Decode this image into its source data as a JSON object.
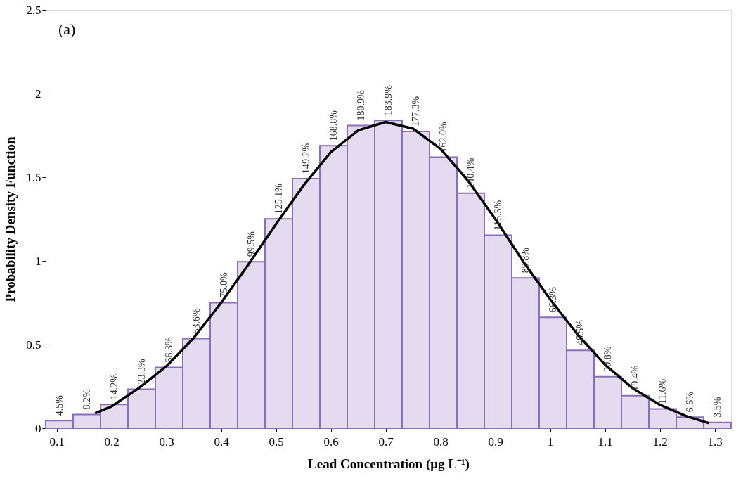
{
  "chart_data": {
    "type": "histogram",
    "xlabel": "Lead Concentration (μg L⁻¹)",
    "ylabel": "Probability Density Function",
    "annotations": [
      "(a)"
    ],
    "bins": [
      0.08,
      0.13,
      0.18,
      0.23,
      0.28,
      0.33,
      0.38,
      0.43,
      0.48,
      0.53,
      0.58,
      0.63,
      0.68,
      0.73,
      0.78,
      0.83,
      0.88,
      0.93,
      0.98,
      1.03,
      1.08,
      1.13,
      1.18,
      1.23,
      1.28,
      1.33
    ],
    "values": [
      0.045,
      0.082,
      0.142,
      0.233,
      0.363,
      0.536,
      0.75,
      0.995,
      1.251,
      1.492,
      1.688,
      1.809,
      1.839,
      1.773,
      1.62,
      1.404,
      1.153,
      0.898,
      0.663,
      0.465,
      0.308,
      0.194,
      0.116,
      0.066,
      0.035
    ],
    "value_labels": [
      "4.5%",
      "8.2%",
      "14.2%",
      "23.3%",
      "36.3%",
      "53.6%",
      "75.0%",
      "99.5%",
      "125.1%",
      "149.2%",
      "168.8%",
      "180.9%",
      "183.9%",
      "177.3%",
      "162.0%",
      "140.4%",
      "115.3%",
      "89.8%",
      "66.3%",
      "46.5%",
      "30.8%",
      "19.4%",
      "11.6%",
      "6.6%",
      "3.5%"
    ],
    "color": "#e4dbf1",
    "series": [
      {
        "type": "line",
        "color": "#000000",
        "x": [
          0.17,
          0.2,
          0.25,
          0.3,
          0.35,
          0.4,
          0.45,
          0.5,
          0.55,
          0.6,
          0.65,
          0.7,
          0.75,
          0.8,
          0.85,
          0.9,
          0.95,
          1.0,
          1.05,
          1.1,
          1.15,
          1.2,
          1.25,
          1.29
        ],
        "values": [
          0.09,
          0.13,
          0.24,
          0.37,
          0.54,
          0.75,
          0.98,
          1.22,
          1.45,
          1.65,
          1.78,
          1.83,
          1.79,
          1.67,
          1.48,
          1.25,
          1.0,
          0.77,
          0.56,
          0.38,
          0.24,
          0.14,
          0.07,
          0.03
        ]
      }
    ],
    "xlim": [
      0.08,
      1.33
    ],
    "xticks": [
      0.1,
      0.2,
      0.3,
      0.4,
      0.5,
      0.6,
      0.7,
      0.8,
      0.9,
      1,
      1.1,
      1.2,
      1.3
    ],
    "ylim": [
      0,
      2.5
    ],
    "yticks": [
      0,
      0.5,
      1,
      1.5,
      2,
      2.5
    ],
    "grid": false
  }
}
